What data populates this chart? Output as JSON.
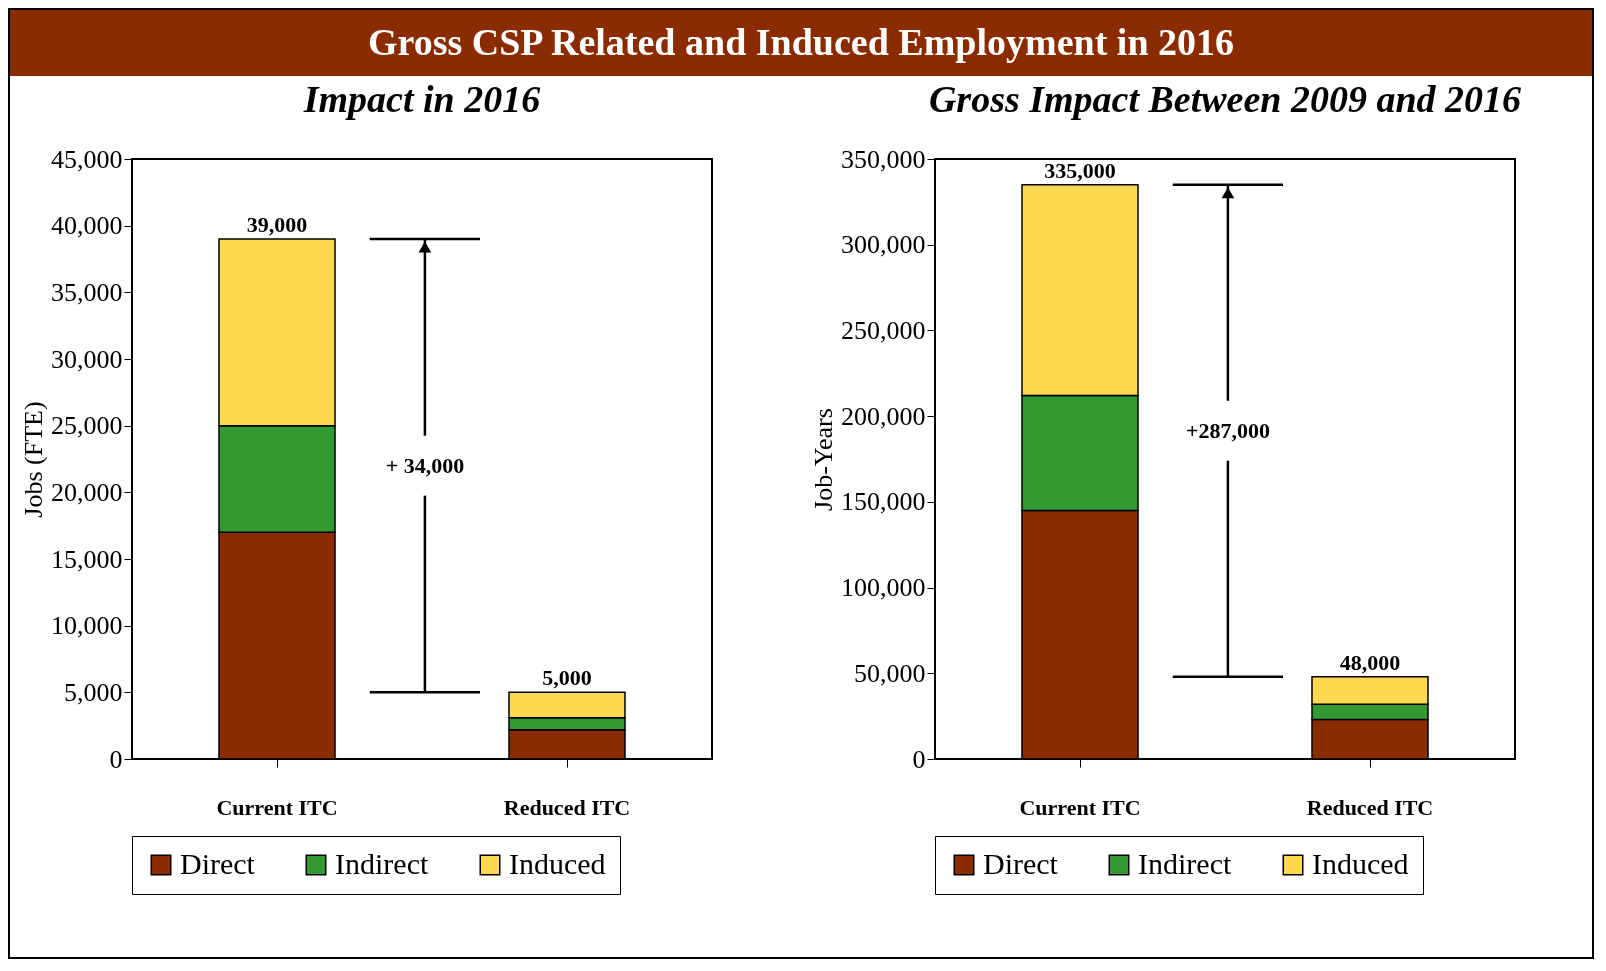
{
  "chart_data": [
    {
      "type": "bar",
      "title": "Gross CSP Related and Induced Employment in 2016",
      "subtitle": "Impact in 2016",
      "ylabel": "Jobs (FTE)",
      "categories": [
        "Current ITC",
        "Reduced ITC"
      ],
      "stacked": true,
      "series": [
        {
          "name": "Direct",
          "color": "#8b2c00",
          "values": [
            17000,
            2200
          ]
        },
        {
          "name": "Indirect",
          "color": "#339933",
          "values": [
            8000,
            900
          ]
        },
        {
          "name": "Induced",
          "color": "#fcd94f",
          "values": [
            14000,
            1900
          ]
        }
      ],
      "ylim": [
        0,
        45000
      ],
      "yticks": [
        0,
        {
          "value": 5000,
          "label": "5,000"
        },
        {
          "value": 10000,
          "label": "10,000"
        },
        {
          "value": 15000,
          "label": "15,000"
        },
        {
          "value": 20000,
          "label": "20,000"
        },
        {
          "value": 25000,
          "label": "25,000"
        },
        {
          "value": 30000,
          "label": "30,000"
        },
        {
          "value": 35000,
          "label": "35,000"
        },
        {
          "value": 40000,
          "label": "40,000"
        },
        {
          "value": 45000,
          "label": "45,000"
        }
      ],
      "totals": [
        "39,000",
        "5,000"
      ],
      "annotations": [
        "+ 34,000"
      ],
      "grid": false,
      "legend": "bottom"
    },
    {
      "type": "bar",
      "subtitle": "Gross Impact Between 2009 and 2016",
      "ylabel": "Job-Years",
      "categories": [
        "Current ITC",
        "Reduced ITC"
      ],
      "stacked": true,
      "series": [
        {
          "name": "Direct",
          "color": "#8b2c00",
          "values": [
            145000,
            23000
          ]
        },
        {
          "name": "Indirect",
          "color": "#339933",
          "values": [
            67000,
            9000
          ]
        },
        {
          "name": "Induced",
          "color": "#fcd94f",
          "values": [
            123000,
            16000
          ]
        }
      ],
      "ylim": [
        0,
        350000
      ],
      "yticks": [
        0,
        {
          "value": 50000,
          "label": "50,000"
        },
        {
          "value": 100000,
          "label": "100,000"
        },
        {
          "value": 150000,
          "label": "150,000"
        },
        {
          "value": 200000,
          "label": "200,000"
        },
        {
          "value": 250000,
          "label": "250,000"
        },
        {
          "value": 300000,
          "label": "300,000"
        },
        {
          "value": 350000,
          "label": "350,000"
        }
      ],
      "totals": [
        "335,000",
        "48,000"
      ],
      "annotations": [
        "+287,000"
      ],
      "grid": false,
      "legend": "bottom"
    }
  ]
}
